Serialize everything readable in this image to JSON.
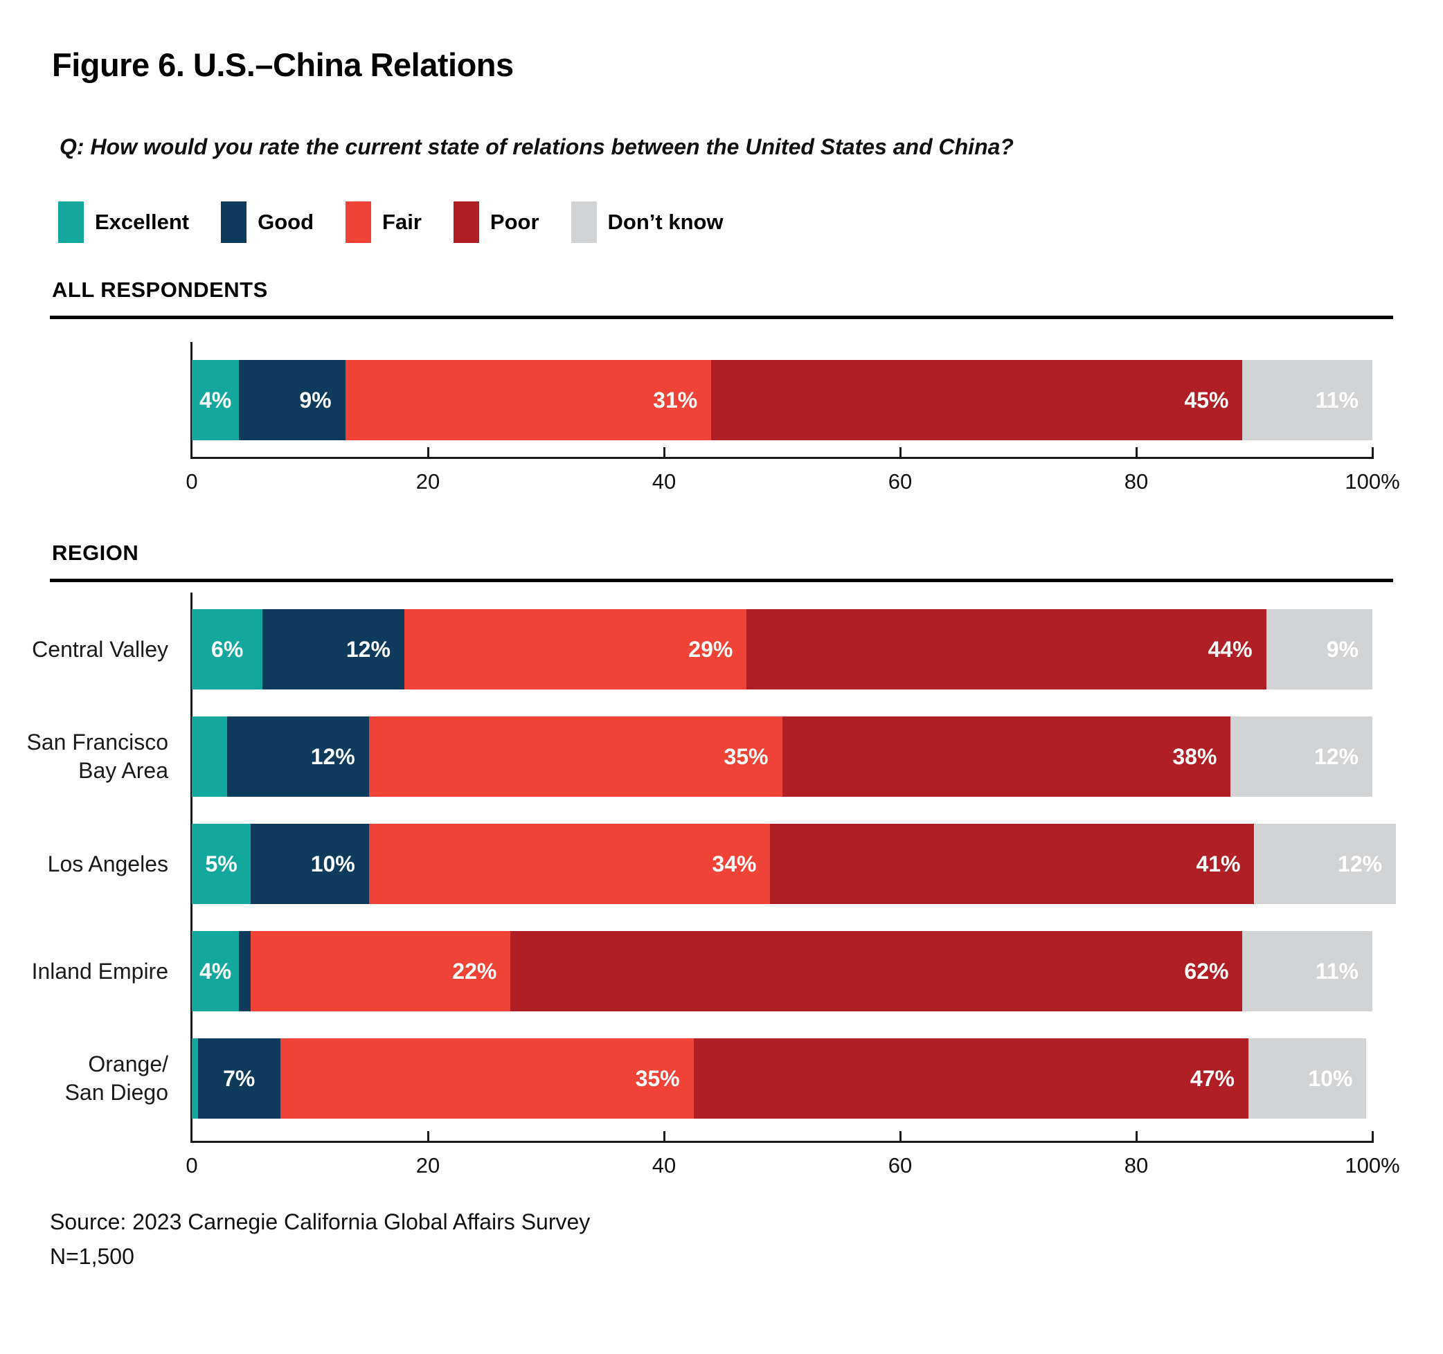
{
  "figure": {
    "title": "Figure 6. U.S.–China Relations",
    "question": "Q: How would you rate the current state of relations between the United States and China?",
    "source_line1": "Source: 2023 Carnegie California Global Affairs Survey",
    "source_line2": "N=1,500"
  },
  "legend": [
    {
      "label": "Excellent",
      "color": "#14A79D"
    },
    {
      "label": "Good",
      "color": "#0E3A5C"
    },
    {
      "label": "Fair",
      "color": "#EF4337"
    },
    {
      "label": "Poor",
      "color": "#B11F26"
    },
    {
      "label": "Don’t know",
      "color": "#D2D3D4"
    }
  ],
  "chart_data": [
    {
      "type": "bar",
      "variant": "horizontal-stacked-percent",
      "section": "ALL RESPONDENTS",
      "categories": [
        ""
      ],
      "series": [
        {
          "name": "Excellent",
          "color": "#14A79D",
          "values": [
            4
          ],
          "labels": [
            "4%"
          ]
        },
        {
          "name": "Good",
          "color": "#0E3A5C",
          "values": [
            9
          ],
          "labels": [
            "9%"
          ]
        },
        {
          "name": "Fair",
          "color": "#EF4337",
          "values": [
            31
          ],
          "labels": [
            "31%"
          ]
        },
        {
          "name": "Poor",
          "color": "#B11F26",
          "values": [
            45
          ],
          "labels": [
            "45%"
          ]
        },
        {
          "name": "Don’t know",
          "color": "#D2D3D4",
          "values": [
            11
          ],
          "labels": [
            "11%"
          ]
        }
      ],
      "axis": {
        "min": 0,
        "max": 100,
        "tick_values": [
          0,
          20,
          40,
          60,
          80,
          100
        ],
        "tick_labels": [
          "0",
          "20",
          "40",
          "60",
          "80",
          "100%"
        ]
      }
    },
    {
      "type": "bar",
      "variant": "horizontal-stacked-percent",
      "section": "REGION",
      "categories": [
        "Central Valley",
        "San Francisco\nBay Area",
        "Los Angeles",
        "Inland Empire",
        "Orange/\nSan Diego"
      ],
      "series": [
        {
          "name": "Excellent",
          "color": "#14A79D",
          "values": [
            6,
            3,
            5,
            4,
            0.5
          ],
          "labels": [
            "6%",
            "",
            "5%",
            "4%",
            ""
          ]
        },
        {
          "name": "Good",
          "color": "#0E3A5C",
          "values": [
            12,
            12,
            10,
            1,
            7
          ],
          "labels": [
            "12%",
            "12%",
            "10%",
            "",
            "7%"
          ]
        },
        {
          "name": "Fair",
          "color": "#EF4337",
          "values": [
            29,
            35,
            34,
            22,
            35
          ],
          "labels": [
            "29%",
            "35%",
            "34%",
            "22%",
            "35%"
          ]
        },
        {
          "name": "Poor",
          "color": "#B11F26",
          "values": [
            44,
            38,
            41,
            62,
            47
          ],
          "labels": [
            "44%",
            "38%",
            "41%",
            "62%",
            "47%"
          ]
        },
        {
          "name": "Don’t know",
          "color": "#D2D3D4",
          "values": [
            9,
            12,
            12,
            11,
            10
          ],
          "labels": [
            "9%",
            "12%",
            "12%",
            "11%",
            "10%"
          ]
        }
      ],
      "axis": {
        "min": 0,
        "max": 100,
        "tick_values": [
          0,
          20,
          40,
          60,
          80,
          100
        ],
        "tick_labels": [
          "0",
          "20",
          "40",
          "60",
          "80",
          "100%"
        ]
      }
    }
  ]
}
